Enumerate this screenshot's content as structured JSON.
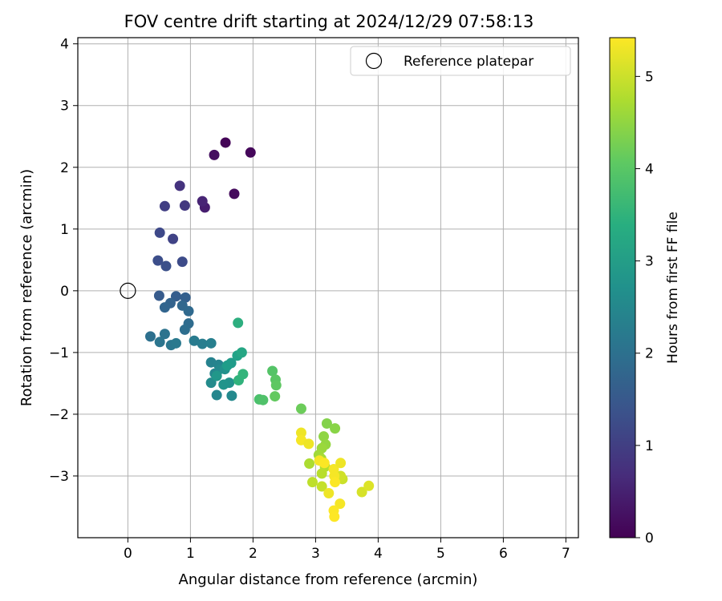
{
  "chart_data": {
    "type": "scatter",
    "title": "FOV centre drift starting at 2024/12/29 07:58:13",
    "xlabel": "Angular distance from reference (arcmin)",
    "ylabel": "Rotation from reference (arcmin)",
    "xlim": [
      -0.8,
      7.2
    ],
    "ylim": [
      -4.0,
      4.1
    ],
    "xticks": [
      0,
      1,
      2,
      3,
      4,
      5,
      6,
      7
    ],
    "yticks": [
      -3,
      -2,
      -1,
      0,
      1,
      2,
      3,
      4
    ],
    "grid": true,
    "legend": {
      "position": "top-right",
      "entries": [
        "Reference platepar"
      ]
    },
    "reference_point": {
      "x": 0,
      "y": 0,
      "label": "Reference platepar"
    },
    "colorbar": {
      "label": "Hours from first FF file",
      "colormap": "viridis",
      "range": [
        0,
        5.42
      ],
      "ticks": [
        0,
        1,
        2,
        3,
        4,
        5
      ]
    },
    "points": [
      {
        "x": 1.56,
        "y": 2.4,
        "t": 0.05
      },
      {
        "x": 1.96,
        "y": 2.24,
        "t": 0.1
      },
      {
        "x": 1.38,
        "y": 2.2,
        "t": 0.2
      },
      {
        "x": 1.7,
        "y": 1.57,
        "t": 0.15
      },
      {
        "x": 1.23,
        "y": 1.35,
        "t": 0.45
      },
      {
        "x": 1.19,
        "y": 1.45,
        "t": 0.55
      },
      {
        "x": 0.83,
        "y": 1.7,
        "t": 0.8
      },
      {
        "x": 0.59,
        "y": 1.37,
        "t": 1.0
      },
      {
        "x": 0.91,
        "y": 1.38,
        "t": 0.9
      },
      {
        "x": 0.51,
        "y": 0.94,
        "t": 1.2
      },
      {
        "x": 0.72,
        "y": 0.84,
        "t": 1.1
      },
      {
        "x": 0.48,
        "y": 0.49,
        "t": 1.3
      },
      {
        "x": 0.87,
        "y": 0.47,
        "t": 1.25
      },
      {
        "x": 0.61,
        "y": 0.4,
        "t": 1.35
      },
      {
        "x": 0.5,
        "y": -0.08,
        "t": 1.55
      },
      {
        "x": 0.77,
        "y": -0.09,
        "t": 1.6
      },
      {
        "x": 0.92,
        "y": -0.11,
        "t": 1.65
      },
      {
        "x": 0.68,
        "y": -0.2,
        "t": 1.7
      },
      {
        "x": 0.59,
        "y": -0.27,
        "t": 1.75
      },
      {
        "x": 0.87,
        "y": -0.24,
        "t": 1.8
      },
      {
        "x": 0.97,
        "y": -0.33,
        "t": 1.85
      },
      {
        "x": 0.97,
        "y": -0.53,
        "t": 1.9
      },
      {
        "x": 0.91,
        "y": -0.63,
        "t": 1.95
      },
      {
        "x": 0.36,
        "y": -0.74,
        "t": 2.0
      },
      {
        "x": 0.59,
        "y": -0.7,
        "t": 2.05
      },
      {
        "x": 0.51,
        "y": -0.83,
        "t": 2.1
      },
      {
        "x": 0.69,
        "y": -0.88,
        "t": 2.15
      },
      {
        "x": 0.77,
        "y": -0.85,
        "t": 2.2
      },
      {
        "x": 1.06,
        "y": -0.81,
        "t": 2.25
      },
      {
        "x": 1.19,
        "y": -0.86,
        "t": 2.3
      },
      {
        "x": 1.33,
        "y": -0.85,
        "t": 2.35
      },
      {
        "x": 1.33,
        "y": -1.16,
        "t": 2.4
      },
      {
        "x": 1.45,
        "y": -1.2,
        "t": 2.45
      },
      {
        "x": 1.39,
        "y": -1.34,
        "t": 2.5
      },
      {
        "x": 1.47,
        "y": -1.27,
        "t": 2.55
      },
      {
        "x": 1.33,
        "y": -1.49,
        "t": 2.6
      },
      {
        "x": 1.42,
        "y": -1.69,
        "t": 2.5
      },
      {
        "x": 1.66,
        "y": -1.7,
        "t": 2.55
      },
      {
        "x": 1.55,
        "y": -1.27,
        "t": 2.7
      },
      {
        "x": 1.62,
        "y": -1.49,
        "t": 2.75
      },
      {
        "x": 1.53,
        "y": -1.52,
        "t": 2.8
      },
      {
        "x": 1.42,
        "y": -1.38,
        "t": 2.85
      },
      {
        "x": 1.65,
        "y": -1.17,
        "t": 2.95
      },
      {
        "x": 1.59,
        "y": -1.21,
        "t": 3.0
      },
      {
        "x": 1.75,
        "y": -1.05,
        "t": 3.1
      },
      {
        "x": 1.82,
        "y": -1.0,
        "t": 3.2
      },
      {
        "x": 1.76,
        "y": -0.52,
        "t": 3.4
      },
      {
        "x": 1.77,
        "y": -1.45,
        "t": 3.5
      },
      {
        "x": 1.84,
        "y": -1.35,
        "t": 3.55
      },
      {
        "x": 2.1,
        "y": -1.76,
        "t": 3.85
      },
      {
        "x": 2.16,
        "y": -1.77,
        "t": 3.9
      },
      {
        "x": 2.31,
        "y": -1.3,
        "t": 3.95
      },
      {
        "x": 2.36,
        "y": -1.44,
        "t": 4.0
      },
      {
        "x": 2.37,
        "y": -1.53,
        "t": 4.05
      },
      {
        "x": 2.35,
        "y": -1.71,
        "t": 4.1
      },
      {
        "x": 2.77,
        "y": -1.91,
        "t": 4.2
      },
      {
        "x": 3.18,
        "y": -2.15,
        "t": 4.4
      },
      {
        "x": 3.31,
        "y": -2.23,
        "t": 4.45
      },
      {
        "x": 3.13,
        "y": -2.36,
        "t": 4.5
      },
      {
        "x": 3.16,
        "y": -2.49,
        "t": 4.55
      },
      {
        "x": 3.1,
        "y": -2.55,
        "t": 4.6
      },
      {
        "x": 3.05,
        "y": -2.66,
        "t": 4.65
      },
      {
        "x": 3.09,
        "y": -2.72,
        "t": 4.7
      },
      {
        "x": 2.9,
        "y": -2.8,
        "t": 4.75
      },
      {
        "x": 3.15,
        "y": -2.85,
        "t": 4.8
      },
      {
        "x": 3.1,
        "y": -2.96,
        "t": 4.85
      },
      {
        "x": 2.95,
        "y": -3.1,
        "t": 4.9
      },
      {
        "x": 3.1,
        "y": -3.17,
        "t": 4.95
      },
      {
        "x": 3.43,
        "y": -3.05,
        "t": 5.0
      },
      {
        "x": 3.4,
        "y": -3.0,
        "t": 5.05
      },
      {
        "x": 3.74,
        "y": -3.26,
        "t": 5.1
      },
      {
        "x": 3.85,
        "y": -3.16,
        "t": 5.15
      },
      {
        "x": 2.77,
        "y": -2.3,
        "t": 5.3
      },
      {
        "x": 2.77,
        "y": -2.42,
        "t": 5.35
      },
      {
        "x": 2.89,
        "y": -2.48,
        "t": 5.3
      },
      {
        "x": 3.06,
        "y": -2.75,
        "t": 5.35
      },
      {
        "x": 3.14,
        "y": -2.79,
        "t": 5.4
      },
      {
        "x": 3.29,
        "y": -2.89,
        "t": 5.35
      },
      {
        "x": 3.4,
        "y": -2.79,
        "t": 5.3
      },
      {
        "x": 3.3,
        "y": -3.0,
        "t": 5.35
      },
      {
        "x": 3.31,
        "y": -3.1,
        "t": 5.4
      },
      {
        "x": 3.21,
        "y": -3.28,
        "t": 5.3
      },
      {
        "x": 3.39,
        "y": -3.45,
        "t": 5.35
      },
      {
        "x": 3.29,
        "y": -3.56,
        "t": 5.4
      },
      {
        "x": 3.3,
        "y": -3.66,
        "t": 5.42
      }
    ]
  }
}
